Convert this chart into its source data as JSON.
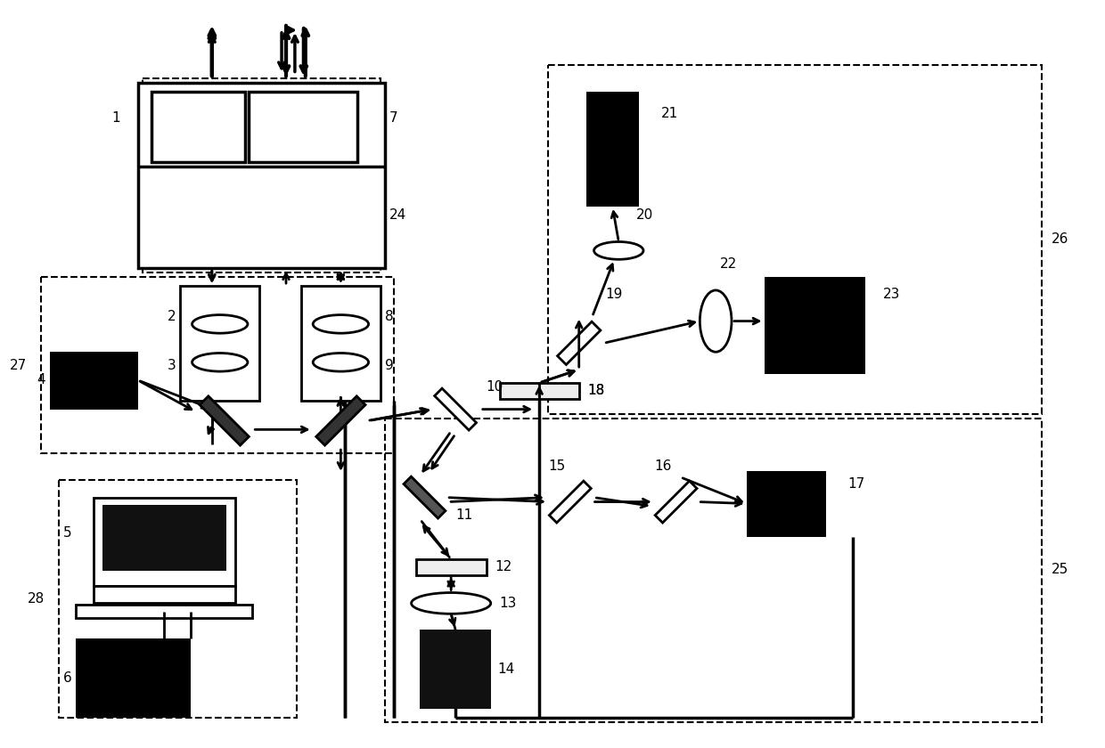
{
  "fig_width": 12.4,
  "fig_height": 8.4,
  "dpi": 100,
  "bg_color": "#ffffff"
}
